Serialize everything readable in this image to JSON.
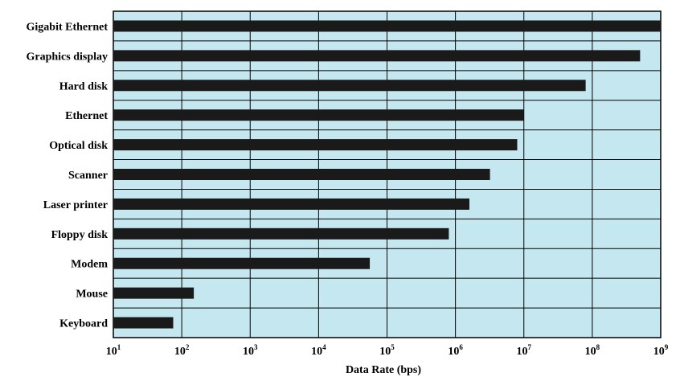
{
  "chart_data": {
    "type": "bar",
    "orientation": "horizontal",
    "title": "",
    "xlabel": "Data Rate (bps)",
    "ylabel": "",
    "x_scale": "log",
    "xlim": [
      10,
      1000000000
    ],
    "categories": [
      "Gigabit Ethernet",
      "Graphics display",
      "Hard disk",
      "Ethernet",
      "Optical disk",
      "Scanner",
      "Laser printer",
      "Floppy disk",
      "Modem",
      "Mouse",
      "Keyboard"
    ],
    "values": [
      1000000000,
      500000000,
      80000000,
      10000000,
      8000000,
      3200000,
      1600000,
      800000,
      56000,
      150,
      75
    ],
    "x_ticks": [
      {
        "base": "10",
        "exp": "1"
      },
      {
        "base": "10",
        "exp": "2"
      },
      {
        "base": "10",
        "exp": "3"
      },
      {
        "base": "10",
        "exp": "4"
      },
      {
        "base": "10",
        "exp": "5"
      },
      {
        "base": "10",
        "exp": "6"
      },
      {
        "base": "10",
        "exp": "7"
      },
      {
        "base": "10",
        "exp": "8"
      },
      {
        "base": "10",
        "exp": "9"
      }
    ],
    "grid": true,
    "legend": "none",
    "colors": {
      "plot_background": "#c5e7f0",
      "bar": "#1a1a1a",
      "grid": "#000000",
      "text": "#000000"
    }
  }
}
